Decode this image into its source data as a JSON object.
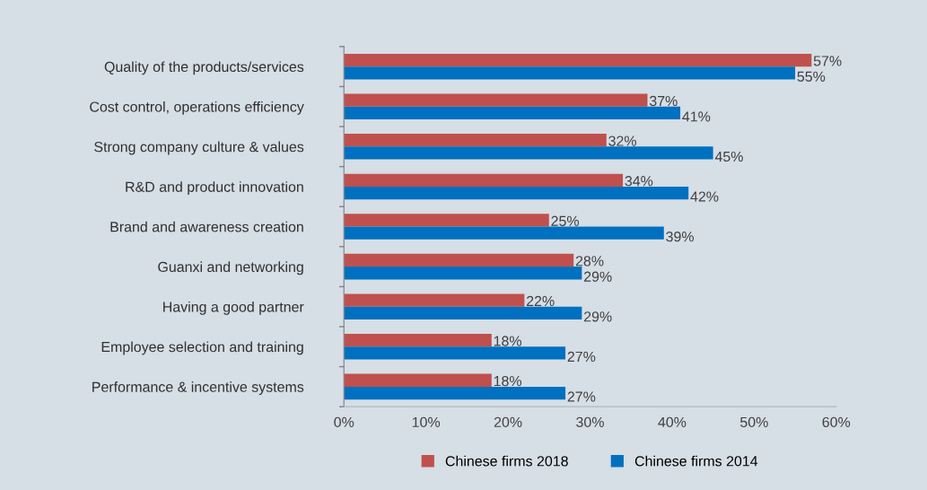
{
  "chart_data": {
    "type": "bar",
    "orientation": "horizontal",
    "categories": [
      "Quality of the products/services",
      "Cost control, operations efficiency",
      "Strong company culture & values",
      "R&D and product innovation",
      "Brand and awareness creation",
      "Guanxi and networking",
      "Having a good partner",
      "Employee selection and training",
      "Performance & incentive systems"
    ],
    "series": [
      {
        "name": "Chinese firms 2018",
        "color": "#c0504d",
        "values": [
          57,
          37,
          32,
          34,
          25,
          28,
          22,
          18,
          18
        ],
        "value_labels": [
          "57%",
          "37%",
          "32%",
          "34%",
          "25%",
          "28%",
          "22%",
          "18%",
          "18%"
        ]
      },
      {
        "name": "Chinese firms 2014",
        "color": "#0070c0",
        "values": [
          55,
          41,
          45,
          42,
          39,
          29,
          29,
          27,
          27
        ],
        "value_labels": [
          "55%",
          "41%",
          "45%",
          "42%",
          "39%",
          "29%",
          "29%",
          "27%",
          "27%"
        ]
      }
    ],
    "xlim": [
      0,
      60
    ],
    "xticks": [
      {
        "value": 0,
        "label": "0%"
      },
      {
        "value": 10,
        "label": "10%"
      },
      {
        "value": 20,
        "label": "20%"
      },
      {
        "value": 30,
        "label": "30%"
      },
      {
        "value": 40,
        "label": "40%"
      },
      {
        "value": 50,
        "label": "50%"
      },
      {
        "value": 60,
        "label": "60%"
      }
    ],
    "grid": false,
    "legend": "bottom"
  }
}
